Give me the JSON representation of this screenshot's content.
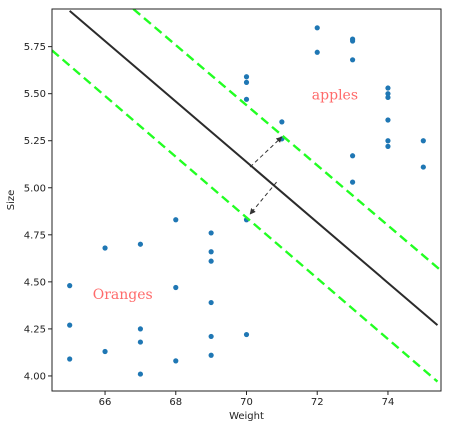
{
  "chart_data": {
    "type": "scatter",
    "xlabel": "Weight",
    "ylabel": "Size",
    "xlim": [
      64.5,
      75.5
    ],
    "ylim": [
      3.92,
      5.95
    ],
    "x_ticks": [
      66,
      68,
      70,
      72,
      74
    ],
    "x_tick_labels": [
      "66",
      "68",
      "70",
      "72",
      "74"
    ],
    "y_ticks": [
      4.0,
      4.25,
      4.5,
      4.75,
      5.0,
      5.25,
      5.5,
      5.75
    ],
    "y_tick_labels": [
      "4.00",
      "4.25",
      "4.50",
      "4.75",
      "5.00",
      "5.25",
      "5.50",
      "5.75"
    ],
    "grid": false,
    "point_color": "#1f77b4",
    "points": [
      {
        "x": 65,
        "y": 4.48
      },
      {
        "x": 65,
        "y": 4.27
      },
      {
        "x": 65,
        "y": 4.09
      },
      {
        "x": 66,
        "y": 4.68
      },
      {
        "x": 66,
        "y": 4.13
      },
      {
        "x": 67,
        "y": 4.7
      },
      {
        "x": 67,
        "y": 4.25
      },
      {
        "x": 67,
        "y": 4.18
      },
      {
        "x": 67,
        "y": 4.01
      },
      {
        "x": 68,
        "y": 4.83
      },
      {
        "x": 68,
        "y": 4.47
      },
      {
        "x": 68,
        "y": 4.08
      },
      {
        "x": 69,
        "y": 4.76
      },
      {
        "x": 69,
        "y": 4.66
      },
      {
        "x": 69,
        "y": 4.61
      },
      {
        "x": 69,
        "y": 4.39
      },
      {
        "x": 69,
        "y": 4.21
      },
      {
        "x": 69,
        "y": 4.11
      },
      {
        "x": 70,
        "y": 4.83
      },
      {
        "x": 70,
        "y": 4.22
      },
      {
        "x": 70,
        "y": 5.59
      },
      {
        "x": 70,
        "y": 5.56
      },
      {
        "x": 70,
        "y": 5.47
      },
      {
        "x": 71,
        "y": 5.35
      },
      {
        "x": 71,
        "y": 5.26
      },
      {
        "x": 72,
        "y": 5.85
      },
      {
        "x": 72,
        "y": 5.72
      },
      {
        "x": 73,
        "y": 5.79
      },
      {
        "x": 73,
        "y": 5.78
      },
      {
        "x": 73,
        "y": 5.68
      },
      {
        "x": 73,
        "y": 5.17
      },
      {
        "x": 73,
        "y": 5.03
      },
      {
        "x": 74,
        "y": 5.53
      },
      {
        "x": 74,
        "y": 5.5
      },
      {
        "x": 74,
        "y": 5.48
      },
      {
        "x": 74,
        "y": 5.36
      },
      {
        "x": 74,
        "y": 5.25
      },
      {
        "x": 74,
        "y": 5.22
      },
      {
        "x": 75,
        "y": 5.25
      },
      {
        "x": 75,
        "y": 5.11
      }
    ],
    "lines": [
      {
        "role": "decision-boundary",
        "color": "#2b2b2b",
        "style": "solid",
        "from": [
          65.0,
          5.94
        ],
        "to": [
          75.4,
          4.27
        ]
      },
      {
        "role": "upper-margin",
        "color": "#22ff22",
        "style": "dashed",
        "from": [
          66.8,
          5.95
        ],
        "to": [
          75.5,
          4.56
        ]
      },
      {
        "role": "lower-margin",
        "color": "#22ff22",
        "style": "dashed",
        "from": [
          64.5,
          5.73
        ],
        "to": [
          75.4,
          3.97
        ]
      }
    ],
    "margin_arrow": {
      "from": [
        70.1,
        5.11
      ],
      "to": [
        71.0,
        5.27
      ],
      "from2": [
        70.85,
        5.03
      ],
      "to2": [
        70.1,
        4.86
      ],
      "color": "#333333"
    },
    "annotations": [
      {
        "text": "apples",
        "x": 72.5,
        "y": 5.47,
        "color": "#ff6b6b"
      },
      {
        "text": "Oranges",
        "x": 66.5,
        "y": 4.41,
        "color": "#ff6b6b"
      }
    ]
  }
}
